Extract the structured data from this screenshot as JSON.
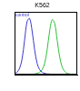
{
  "chart_data": {
    "type": "line",
    "title": "K562",
    "x": [
      0,
      4,
      8,
      12,
      16,
      20,
      24,
      28,
      32,
      36,
      40,
      44,
      48,
      52,
      56,
      60,
      64,
      68,
      72,
      76,
      80,
      84,
      88,
      92,
      96,
      100
    ],
    "series": [
      {
        "name": "control",
        "color": "#3a3ad0",
        "values": [
          2,
          4,
          10,
          25,
          55,
          85,
          90,
          70,
          40,
          18,
          8,
          4,
          2,
          1,
          1,
          0,
          0,
          0,
          0,
          0,
          0,
          0,
          0,
          0,
          0,
          0
        ]
      },
      {
        "color": "#2fbf3a",
        "values": [
          0,
          0,
          0,
          0,
          0,
          0,
          0,
          0,
          1,
          2,
          4,
          8,
          18,
          40,
          70,
          88,
          82,
          55,
          28,
          12,
          5,
          2,
          1,
          0,
          0,
          0
        ]
      }
    ],
    "xlim": [
      0,
      100
    ],
    "ylim": [
      0,
      100
    ],
    "grid": false,
    "tick_labels": false
  }
}
